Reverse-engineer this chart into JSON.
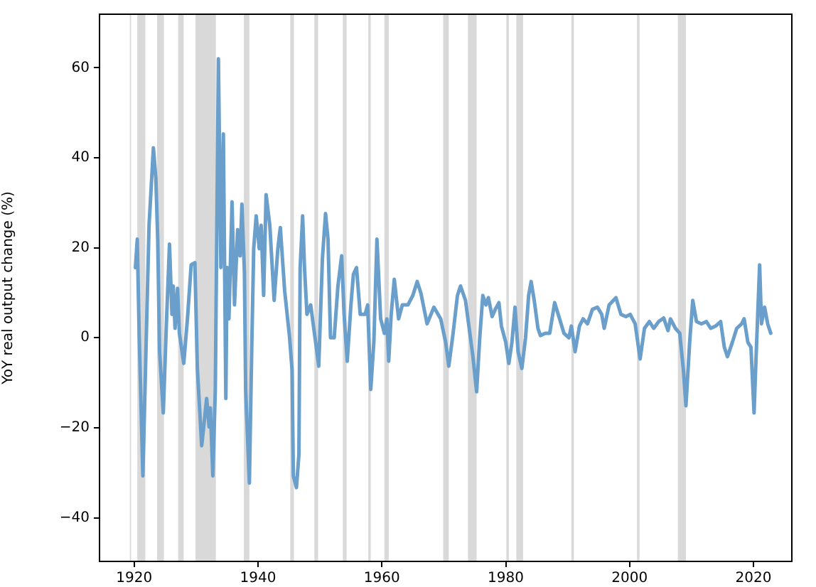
{
  "chart_data": {
    "type": "line",
    "ylabel": "YoY real output change (%)",
    "xlim": [
      1914.4,
      2026.2
    ],
    "xticks": [
      1920,
      1940,
      1960,
      1980,
      2000,
      2020
    ],
    "ylim": [
      -49.7,
      71.9
    ],
    "yticks": [
      -40,
      -20,
      0,
      20,
      40,
      60
    ],
    "grid": false,
    "legend": false,
    "marker": "none",
    "line_style": "solid",
    "bands": [
      {
        "axis": "x",
        "from": 1919.3,
        "to": 1919.5,
        "color": "#d9d9d9"
      },
      {
        "axis": "x",
        "from": 1920.5,
        "to": 1921.8,
        "color": "#d9d9d9"
      },
      {
        "axis": "x",
        "from": 1923.7,
        "to": 1924.8,
        "color": "#d9d9d9"
      },
      {
        "axis": "x",
        "from": 1927.1,
        "to": 1928.0,
        "color": "#d9d9d9"
      },
      {
        "axis": "x",
        "from": 1929.9,
        "to": 1933.2,
        "color": "#d9d9d9"
      },
      {
        "axis": "x",
        "from": 1937.7,
        "to": 1938.6,
        "color": "#d9d9d9"
      },
      {
        "axis": "x",
        "from": 1945.2,
        "to": 1945.8,
        "color": "#d9d9d9"
      },
      {
        "axis": "x",
        "from": 1949.1,
        "to": 1949.7,
        "color": "#d9d9d9"
      },
      {
        "axis": "x",
        "from": 1953.7,
        "to": 1954.3,
        "color": "#d9d9d9"
      },
      {
        "axis": "x",
        "from": 1957.8,
        "to": 1958.2,
        "color": "#d9d9d9"
      },
      {
        "axis": "x",
        "from": 1960.4,
        "to": 1961.1,
        "color": "#d9d9d9"
      },
      {
        "axis": "x",
        "from": 1969.9,
        "to": 1970.8,
        "color": "#d9d9d9"
      },
      {
        "axis": "x",
        "from": 1973.9,
        "to": 1975.3,
        "color": "#d9d9d9"
      },
      {
        "axis": "x",
        "from": 1980.1,
        "to": 1980.5,
        "color": "#d9d9d9"
      },
      {
        "axis": "x",
        "from": 1981.7,
        "to": 1982.8,
        "color": "#d9d9d9"
      },
      {
        "axis": "x",
        "from": 1990.6,
        "to": 1991.0,
        "color": "#d9d9d9"
      },
      {
        "axis": "x",
        "from": 2001.2,
        "to": 2001.6,
        "color": "#d9d9d9"
      },
      {
        "axis": "x",
        "from": 2007.8,
        "to": 2009.1,
        "color": "#d9d9d9"
      }
    ],
    "series": [
      {
        "color": "#6a9fcb",
        "x": [
          1920.2,
          1920.5,
          1920.8,
          1921.4,
          1922.4,
          1922.7,
          1923.1,
          1923.5,
          1923.8,
          1924.1,
          1924.7,
          1925.2,
          1925.7,
          1926.1,
          1926.3,
          1926.6,
          1927.0,
          1927.3,
          1928.0,
          1928.6,
          1929.2,
          1929.8,
          1930.2,
          1930.9,
          1931.7,
          1932.1,
          1932.3,
          1932.7,
          1933.1,
          1933.6,
          1934.0,
          1934.4,
          1934.8,
          1935.0,
          1935.3,
          1935.8,
          1936.2,
          1936.7,
          1937.1,
          1937.4,
          1937.8,
          1938.0,
          1938.6,
          1939.0,
          1939.3,
          1939.7,
          1940.2,
          1940.5,
          1940.9,
          1941.3,
          1941.9,
          1942.6,
          1943.2,
          1943.6,
          1944.3,
          1945.1,
          1945.5,
          1945.7,
          1946.2,
          1946.6,
          1946.8,
          1947.2,
          1947.5,
          1947.9,
          1948.5,
          1949.3,
          1949.8,
          1950.4,
          1950.9,
          1951.3,
          1951.7,
          1952.3,
          1952.9,
          1953.5,
          1953.9,
          1954.4,
          1955.0,
          1955.4,
          1955.9,
          1956.5,
          1957.3,
          1957.7,
          1958.2,
          1958.7,
          1959.2,
          1959.8,
          1960.4,
          1960.8,
          1961.1,
          1961.5,
          1962.0,
          1962.7,
          1963.3,
          1964.2,
          1965.0,
          1965.7,
          1966.3,
          1967.3,
          1968.4,
          1969.5,
          1970.3,
          1970.8,
          1971.5,
          1972.2,
          1972.7,
          1973.5,
          1974.1,
          1974.7,
          1975.3,
          1975.8,
          1976.3,
          1976.8,
          1977.2,
          1977.8,
          1978.3,
          1978.9,
          1979.3,
          1980.0,
          1980.5,
          1981.0,
          1981.5,
          1982.0,
          1982.6,
          1983.2,
          1983.7,
          1984.1,
          1984.6,
          1985.2,
          1985.6,
          1986.4,
          1987.1,
          1987.9,
          1988.7,
          1989.4,
          1990.2,
          1990.6,
          1991.2,
          1991.9,
          1992.5,
          1993.2,
          1994.0,
          1994.8,
          1995.5,
          1995.9,
          1996.7,
          1997.8,
          1998.6,
          1999.4,
          2000.1,
          2000.9,
          2001.7,
          2002.4,
          2003.2,
          2003.9,
          2004.7,
          2005.5,
          2006.2,
          2006.6,
          2007.4,
          2008.1,
          2008.7,
          2009.1,
          2009.7,
          2010.2,
          2010.8,
          2011.6,
          2012.4,
          2013.1,
          2013.9,
          2014.7,
          2015.3,
          2015.8,
          2016.6,
          2017.3,
          2018.1,
          2018.5,
          2019.1,
          2019.6,
          2020.1,
          2020.4,
          2021.0,
          2021.3,
          2021.8,
          2022.3,
          2022.8
        ],
        "values": [
          15.6,
          21.9,
          1.0,
          -30.7,
          25.0,
          32.3,
          42.2,
          35.4,
          21.9,
          -3.1,
          -16.7,
          3.1,
          20.8,
          5.2,
          11.5,
          2.1,
          11.0,
          1.0,
          -5.7,
          4.2,
          16.2,
          16.7,
          -6.8,
          -24.0,
          -13.5,
          -19.8,
          -15.6,
          -30.7,
          -11.5,
          62.0,
          15.6,
          45.3,
          -13.5,
          15.6,
          4.2,
          30.2,
          7.3,
          24.0,
          18.2,
          29.7,
          14.6,
          -11.5,
          -32.3,
          -1.0,
          19.8,
          27.1,
          19.8,
          25.0,
          9.4,
          31.8,
          25.0,
          8.3,
          19.8,
          24.5,
          10.4,
          0.0,
          -7.3,
          -30.7,
          -33.3,
          -26.0,
          15.6,
          27.1,
          15.6,
          5.2,
          7.3,
          -1.0,
          -6.3,
          17.7,
          27.6,
          21.9,
          0.0,
          0.0,
          11.5,
          18.2,
          5.2,
          -5.2,
          7.3,
          14.1,
          15.6,
          5.2,
          5.2,
          7.3,
          -11.5,
          -1.0,
          21.9,
          4.2,
          1.0,
          4.2,
          -5.2,
          5.2,
          13.0,
          4.2,
          7.3,
          7.3,
          9.4,
          12.5,
          9.9,
          3.1,
          6.8,
          4.2,
          -1.0,
          -6.3,
          1.0,
          9.4,
          11.5,
          8.3,
          2.1,
          -4.2,
          -12.0,
          0.0,
          9.4,
          7.3,
          8.9,
          4.7,
          6.3,
          7.8,
          2.6,
          -1.0,
          -5.7,
          -1.0,
          6.8,
          -3.1,
          -6.8,
          0.0,
          9.4,
          12.5,
          8.3,
          2.1,
          0.5,
          1.0,
          1.0,
          7.8,
          4.2,
          1.0,
          0.0,
          2.6,
          -3.1,
          2.6,
          4.2,
          3.1,
          6.3,
          6.8,
          5.2,
          2.1,
          7.3,
          8.9,
          5.2,
          4.7,
          5.2,
          3.1,
          -4.7,
          2.1,
          3.6,
          2.1,
          3.6,
          4.4,
          1.6,
          4.2,
          2.1,
          1.0,
          -7.3,
          -15.1,
          -1.0,
          8.3,
          3.6,
          3.1,
          3.6,
          2.1,
          2.6,
          3.6,
          -2.1,
          -4.2,
          -1.0,
          2.1,
          3.1,
          4.2,
          -1.0,
          -2.1,
          -16.7,
          -5.2,
          16.2,
          3.1,
          6.8,
          3.1,
          1.0
        ]
      }
    ]
  }
}
